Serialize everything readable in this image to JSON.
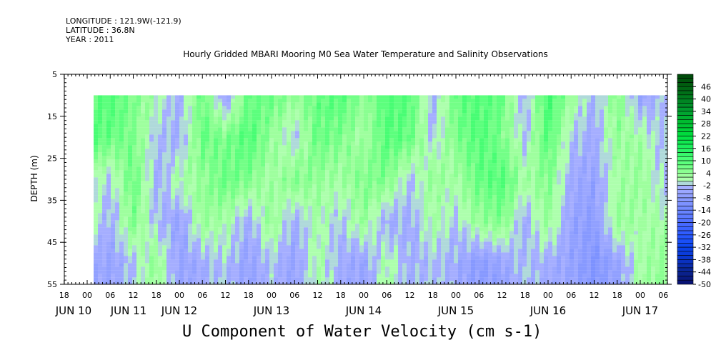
{
  "header": {
    "longitude": "LONGITUDE : 121.9W(-121.9)",
    "latitude": "LATITUDE : 36.8N",
    "year": "YEAR : 2011"
  },
  "chart_data": {
    "type": "heatmap",
    "title": "Hourly Gridded MBARI Mooring M0 Sea Water Temperature and Salinity Observations",
    "xlabel": "U Component of Water Velocity (cm s-1)",
    "ylabel": "DEPTH (m)",
    "ylim": [
      55,
      5
    ],
    "yticks": [
      "5",
      "15",
      "25",
      "35",
      "45",
      "55"
    ],
    "xticks": [
      "18",
      "00",
      "06",
      "12",
      "18",
      "00",
      "06",
      "12",
      "18",
      "00",
      "06",
      "12",
      "18",
      "00",
      "06",
      "12",
      "18",
      "00",
      "06",
      "12",
      "18",
      "00",
      "06",
      "12",
      "18",
      "00",
      "06"
    ],
    "date_labels": [
      "JUN 10",
      "JUN 11",
      "JUN 12",
      "JUN 13",
      "JUN 14",
      "JUN 15",
      "JUN 16",
      "JUN 17"
    ],
    "x_start": "JUN 10 18:00",
    "time_step_hours": 6,
    "grid_time_start": "JUN 11 00:00",
    "grid_depths": [
      10,
      20,
      30,
      40,
      50
    ],
    "values": [
      [
        8,
        10,
        6,
        2,
        -4,
        8,
        -6,
        8,
        8,
        4,
        8,
        10,
        4,
        10,
        10,
        -4,
        8,
        10,
        8,
        -4,
        12,
        4,
        -4,
        6,
        -6,
        -2
      ],
      [
        10,
        8,
        6,
        -2,
        -4,
        8,
        6,
        10,
        4,
        -2,
        8,
        6,
        2,
        10,
        8,
        -2,
        6,
        10,
        6,
        -2,
        10,
        -2,
        -4,
        4,
        2,
        -2
      ],
      [
        4,
        -2,
        8,
        -4,
        2,
        4,
        8,
        6,
        2,
        6,
        4,
        2,
        6,
        6,
        -2,
        4,
        2,
        8,
        10,
        2,
        6,
        -4,
        -6,
        2,
        4,
        -2
      ],
      [
        2,
        -4,
        6,
        -2,
        -6,
        4,
        2,
        -4,
        4,
        -4,
        2,
        -2,
        4,
        -4,
        -4,
        2,
        -2,
        4,
        6,
        -4,
        4,
        -6,
        -8,
        4,
        2,
        2
      ],
      [
        -4,
        -6,
        -2,
        4,
        -6,
        -4,
        -2,
        -6,
        -2,
        -6,
        2,
        -4,
        -6,
        2,
        -4,
        -2,
        -4,
        -8,
        -6,
        -2,
        -4,
        -6,
        -10,
        -6,
        2,
        4
      ]
    ],
    "colorbar": {
      "min": -50,
      "max": 52,
      "step": 2,
      "labels": [
        "46",
        "40",
        "34",
        "28",
        "22",
        "16",
        "10",
        "4",
        "-2",
        "-8",
        "-14",
        "-20",
        "-26",
        "-32",
        "-38",
        "-44",
        "-50"
      ]
    }
  }
}
